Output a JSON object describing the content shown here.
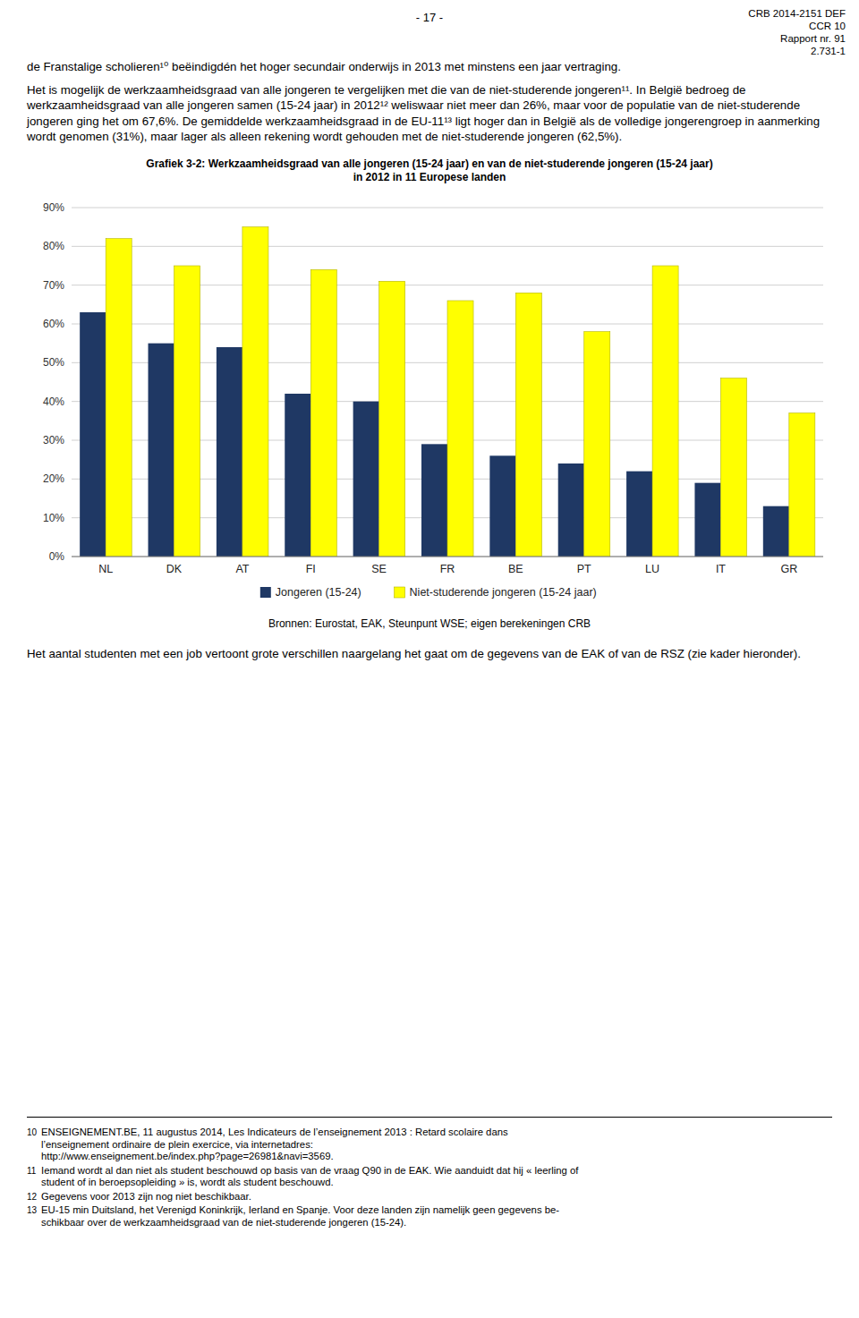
{
  "page_number": "- 17 -",
  "header_right": [
    "CRB 2014-2151 DEF",
    "CCR 10",
    "Rapport nr. 91",
    "2.731-1"
  ],
  "body_text": [
    "de Franstalige scholieren¹⁰ beëindigdén het hoger secundair onderwijs in 2013 met minstens een jaar vertraging.",
    "Het is mogelijk de werkzaamheidsgraad van alle jongeren te vergelijken met die van de niet-studerende jongeren¹¹. In België bedroeg de werkzaamheidsgraad van alle jongeren samen (15-24 jaar) in 2012¹² weliswaar niet meer dan 26%, maar voor de populatie van de niet-studerende jongeren ging het om 67,6%. De gemiddelde werkzaamheidsgraad in de EU-11¹³ ligt hoger dan in België als de volledige jongerengroep in aanmerking wordt genomen (31%), maar lager als alleen rekening wordt gehouden met de niet-studerende jongeren (62,5%)."
  ],
  "chart_data": {
    "type": "bar",
    "title": "Grafiek 3-2: Werkzaamheidsgraad van alle jongeren (15-24 jaar) en van de niet-studerende jongeren (15-24 jaar)",
    "subtitle": "in 2012 in 11 Europese landen",
    "categories": [
      "NL",
      "DK",
      "AT",
      "FI",
      "SE",
      "FR",
      "BE",
      "PT",
      "LU",
      "IT",
      "GR"
    ],
    "series": [
      {
        "name": "Jongeren (15-24)",
        "color": "#1F3864",
        "values": [
          63,
          55,
          54,
          42,
          40,
          29,
          26,
          24,
          22,
          19,
          13
        ]
      },
      {
        "name": "Niet-studerende jongeren (15-24 jaar)",
        "color": "#FFFF00",
        "values": [
          82,
          75,
          85,
          74,
          71,
          66,
          68,
          58,
          75,
          46,
          37
        ]
      }
    ],
    "ylim": [
      0,
      90
    ],
    "yticks": [
      {
        "value": 0,
        "label": "0%"
      },
      {
        "value": 10,
        "label": "10%"
      },
      {
        "value": 20,
        "label": "20%"
      },
      {
        "value": 30,
        "label": "30%"
      },
      {
        "value": 40,
        "label": "40%"
      },
      {
        "value": 50,
        "label": "50%"
      },
      {
        "value": 60,
        "label": "60%"
      },
      {
        "value": 70,
        "label": "70%"
      },
      {
        "value": 80,
        "label": "80%"
      },
      {
        "value": 90,
        "label": "90%"
      }
    ],
    "grid": true,
    "legend": "bottom"
  },
  "source": "Bronnen: Eurostat, EAK, Steunpunt WSE; eigen berekeningen CRB",
  "body_text_after": "Het aantal studenten met een job vertoont grote verschillen naargelang het gaat om de gegevens van de EAK of van de RSZ (zie kader hieronder).",
  "footnotes": [
    {
      "num": "10",
      "lines": [
        "ENSEIGNEMENT.BE, 11 augustus 2014, Les Indicateurs de l’enseignement 2013 : Retard scolaire dans",
        "l’enseignement ordinaire de plein exercice, via internetadres:",
        "http://www.enseignement.be/index.php?page=26981&navi=3569."
      ]
    },
    {
      "num": "11",
      "lines": [
        "Iemand wordt al dan niet als student beschouwd op basis van de vraag Q90 in de EAK. Wie aanduidt dat hij « leerling of",
        "student of in beroepsopleiding » is, wordt als student beschouwd."
      ]
    },
    {
      "num": "12",
      "lines": [
        "Gegevens voor 2013 zijn nog niet beschikbaar."
      ]
    },
    {
      "num": "13",
      "lines": [
        "EU-15 min Duitsland, het Verenigd Koninkrijk, Ierland en Spanje. Voor deze landen zijn namelijk geen gegevens be-",
        "schikbaar over de werkzaamheidsgraad van de niet-studerende jongeren (15-24)."
      ]
    }
  ]
}
